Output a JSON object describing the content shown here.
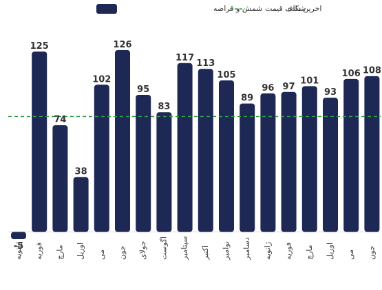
{
  "chart_data": {
    "type": "bar",
    "categories": [
      "ژانویه",
      "فوریه",
      "مارچ",
      "اوریل",
      "می",
      "جون",
      "جولای",
      "اگوست",
      "سپتامبر",
      "اکتبر",
      "نوامبر",
      "دسامبر",
      "ژانویه",
      "فوریه",
      "مارچ",
      "اوریل",
      "می",
      "جون"
    ],
    "series": [
      {
        "name": "شکاف قیمت شمش و قراضه",
        "values": [
          -5,
          125,
          74,
          38,
          102,
          126,
          95,
          83,
          117,
          113,
          105,
          89,
          96,
          97,
          101,
          93,
          106,
          108
        ]
      }
    ],
    "reference_line": {
      "name": "اخرین داده",
      "value": 80
    },
    "ylim": [
      -9,
      131
    ],
    "grid": false,
    "legend_position": "top",
    "colors": {
      "bar": "#1e2854",
      "reference_line": "#2e9e44",
      "value_label": "#333333"
    }
  }
}
